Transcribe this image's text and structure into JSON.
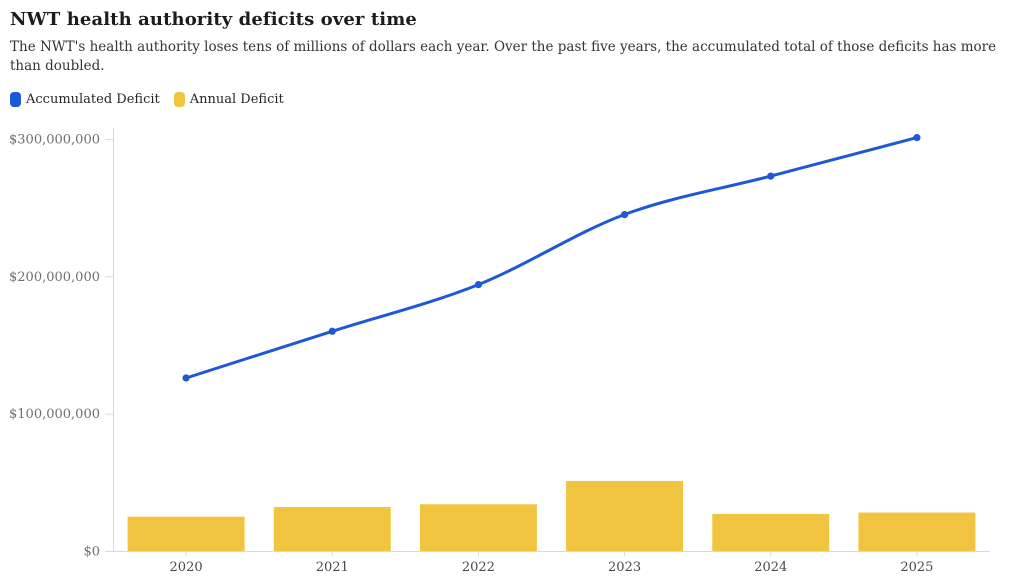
{
  "header": {
    "title": "NWT health authority deficits over time",
    "subtitle": "The NWT's health authority loses tens of millions of dollars each year. Over the past five years, the accumulated total of those deficits has more than doubled."
  },
  "legend": {
    "position": "top-left",
    "items": [
      {
        "label": "Accumulated Deficit",
        "color": "#1f58d6"
      },
      {
        "label": "Annual Deficit",
        "color": "#f0c43e"
      }
    ]
  },
  "chart_data": {
    "type": "combo-bar-line",
    "categories": [
      "2020",
      "2021",
      "2022",
      "2023",
      "2024",
      "2025"
    ],
    "series": [
      {
        "name": "Accumulated Deficit",
        "type": "line",
        "color": "#1f58d6",
        "marker": "dot",
        "values": [
          126000000,
          160000000,
          194000000,
          245000000,
          273000000,
          301000000
        ]
      },
      {
        "name": "Annual Deficit",
        "type": "bar",
        "color": "#f0c43e",
        "values": [
          25000000,
          32000000,
          34000000,
          51000000,
          27000000,
          28000000
        ]
      }
    ],
    "y_axis": {
      "range": [
        0,
        308000000
      ],
      "ticks": [
        {
          "value": 0,
          "label": "$0"
        },
        {
          "value": 100000000,
          "label": "$100,000,000"
        },
        {
          "value": 200000000,
          "label": "$200,000,000"
        },
        {
          "value": 300000000,
          "label": "$300,000,000"
        }
      ]
    },
    "x_axis": {
      "label": ""
    },
    "grid": "none",
    "axis_color": "#d9d9d9",
    "legend_position": "top-left"
  }
}
